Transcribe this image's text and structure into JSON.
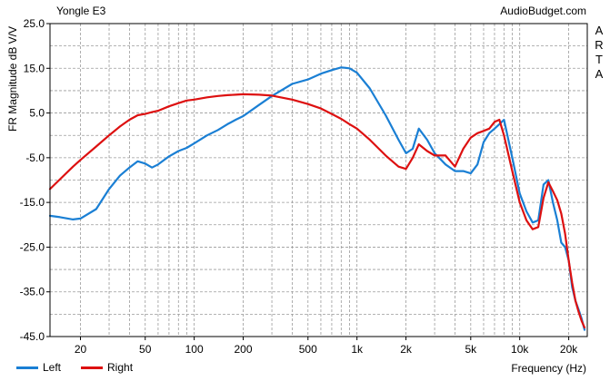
{
  "header": {
    "title": "Yongle E3",
    "site": "AudioBudget.com",
    "side_label": "ARTA"
  },
  "chart_data": {
    "type": "line",
    "title": "Yongle E3",
    "ylabel": "FR Magnitude dB V/V",
    "xlabel": "Frequency (Hz)",
    "xscale": "log",
    "xlim": [
      13,
      26000
    ],
    "ylim": [
      -45,
      25
    ],
    "yticks": [
      -45,
      -35,
      -25,
      -15,
      -5,
      5,
      15,
      25
    ],
    "ytick_labels": [
      "-45.0",
      "-35.0",
      "-25.0",
      "-15.0",
      "-5.0",
      "5.0",
      "15.0",
      "25.0"
    ],
    "xticks": [
      20,
      50,
      100,
      200,
      500,
      1000,
      2000,
      5000,
      10000,
      20000
    ],
    "xtick_labels": [
      "20",
      "50",
      "100",
      "200",
      "500",
      "1k",
      "2k",
      "5k",
      "10k",
      "20k"
    ],
    "grid": true,
    "legend_position": "bottom-left",
    "series": [
      {
        "name": "Left",
        "color": "#1a7fd4",
        "x": [
          13,
          15,
          18,
          20,
          25,
          30,
          35,
          40,
          45,
          50,
          55,
          60,
          70,
          80,
          90,
          100,
          120,
          140,
          160,
          180,
          200,
          250,
          300,
          400,
          500,
          600,
          700,
          800,
          900,
          1000,
          1200,
          1500,
          1800,
          2000,
          2200,
          2400,
          2700,
          3000,
          3500,
          4000,
          4500,
          5000,
          5500,
          6000,
          6500,
          7000,
          7500,
          8000,
          9000,
          10000,
          11000,
          12000,
          13000,
          14000,
          15000,
          16000,
          17000,
          18000,
          19000,
          20000,
          21000,
          22000,
          23000,
          24000,
          25000
        ],
        "y": [
          -18.0,
          -18.3,
          -18.8,
          -18.6,
          -16.5,
          -12.0,
          -9.0,
          -7.2,
          -5.8,
          -6.3,
          -7.2,
          -6.5,
          -4.7,
          -3.5,
          -2.8,
          -1.8,
          0.0,
          1.2,
          2.5,
          3.5,
          4.3,
          6.8,
          8.8,
          11.5,
          12.5,
          13.8,
          14.6,
          15.2,
          15.0,
          14.0,
          10.5,
          4.5,
          -1.0,
          -4.0,
          -3.0,
          1.5,
          -1.0,
          -4.0,
          -6.5,
          -8.0,
          -8.0,
          -8.5,
          -6.5,
          -1.5,
          0.5,
          1.5,
          2.5,
          3.5,
          -5.0,
          -13.0,
          -17.0,
          -19.5,
          -19.0,
          -11.0,
          -10.0,
          -15.0,
          -19.0,
          -24.0,
          -25.0,
          -28.0,
          -34.0,
          -37.0,
          -39.0,
          -41.0,
          -43.5
        ]
      },
      {
        "name": "Right",
        "color": "#dd1010",
        "x": [
          13,
          15,
          18,
          20,
          25,
          30,
          35,
          40,
          45,
          50,
          55,
          60,
          70,
          80,
          90,
          100,
          120,
          140,
          160,
          180,
          200,
          250,
          300,
          400,
          500,
          600,
          700,
          800,
          900,
          1000,
          1200,
          1500,
          1800,
          2000,
          2200,
          2400,
          2700,
          3000,
          3500,
          4000,
          4500,
          5000,
          5500,
          6000,
          6500,
          7000,
          7500,
          8000,
          9000,
          10000,
          11000,
          12000,
          13000,
          14000,
          15000,
          16000,
          17000,
          18000,
          19000,
          20000,
          21000,
          22000,
          23000,
          24000,
          25000
        ],
        "y": [
          -12.0,
          -9.8,
          -7.0,
          -5.5,
          -2.5,
          0.0,
          2.0,
          3.5,
          4.5,
          4.8,
          5.2,
          5.5,
          6.5,
          7.2,
          7.8,
          8.0,
          8.5,
          8.8,
          9.0,
          9.1,
          9.2,
          9.1,
          8.9,
          8.0,
          7.0,
          6.0,
          4.8,
          3.7,
          2.5,
          1.5,
          -1.0,
          -4.5,
          -7.0,
          -7.5,
          -5.0,
          -2.0,
          -3.5,
          -4.5,
          -4.5,
          -7.0,
          -3.0,
          -0.5,
          0.5,
          1.0,
          1.5,
          3.0,
          3.5,
          0.0,
          -8.0,
          -15.0,
          -19.0,
          -21.0,
          -20.5,
          -14.0,
          -10.5,
          -12.5,
          -14.5,
          -17.5,
          -22.0,
          -28.0,
          -33.0,
          -37.0,
          -39.5,
          -41.5,
          -43.0
        ]
      }
    ]
  }
}
